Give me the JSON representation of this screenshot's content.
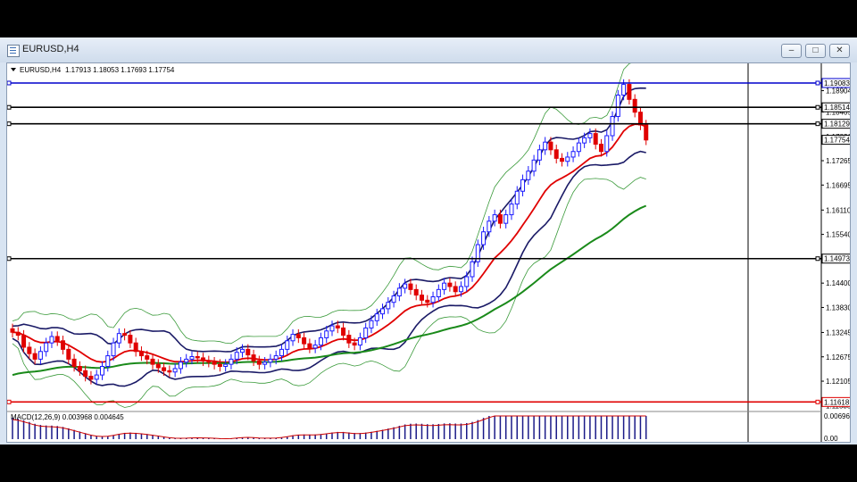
{
  "window": {
    "title": "EURUSD,H4",
    "min_glyph": "–",
    "max_glyph": "□",
    "close_glyph": "✕"
  },
  "chart_header": {
    "symbol": "EURUSD,H4",
    "ohlc": "1.17913 1.18053 1.17693 1.17754"
  },
  "indicator_label": "MACD(12,26,9) 0.003968 0.004645",
  "price_axis": {
    "ticks": [
      "1.18904",
      "1.18405",
      "1.17826",
      "1.17265",
      "1.16695",
      "1.16110",
      "1.15540",
      "1.14400",
      "1.13830",
      "1.13245",
      "1.12675",
      "1.12105",
      "1.11535"
    ],
    "macd_ticks": [
      "0.006968",
      "0.00"
    ]
  },
  "levels": [
    {
      "label": "1.19083",
      "value": 1.19083,
      "color": "#0000cc"
    },
    {
      "label": "1.18514",
      "value": 1.18514,
      "color": "#000000"
    },
    {
      "label": "1.18129",
      "value": 1.18129,
      "color": "#000000"
    },
    {
      "label": "1.14973",
      "value": 1.14973,
      "color": "#000000"
    },
    {
      "label": "1.11618",
      "value": 1.11618,
      "color": "#e00000"
    }
  ],
  "current_price": {
    "label": "1.17754",
    "value": 1.17754
  },
  "colors": {
    "bull_candle": "#1a1aff",
    "bear_candle": "#e00000",
    "bollinger": "#3a9a3a",
    "envelope": "#1a1a66",
    "ma_fast": "#e00000",
    "ma_slow": "#1a8a1a",
    "macd_hist": "#1a1a88",
    "macd_signal": "#cc0000"
  },
  "chart_data": {
    "type": "candlestick",
    "title": "EURUSD,H4",
    "xlabel": "",
    "ylabel": "",
    "ylim": [
      1.115,
      1.1925
    ],
    "grid": false,
    "close_series": [
      1.1325,
      1.1318,
      1.129,
      1.1275,
      1.1262,
      1.128,
      1.13,
      1.1315,
      1.1305,
      1.1285,
      1.1262,
      1.1245,
      1.1235,
      1.1222,
      1.1215,
      1.1225,
      1.1245,
      1.127,
      1.13,
      1.1322,
      1.1318,
      1.13,
      1.128,
      1.127,
      1.1262,
      1.125,
      1.1242,
      1.1235,
      1.1232,
      1.124,
      1.1255,
      1.1262,
      1.1268,
      1.1265,
      1.1258,
      1.1255,
      1.125,
      1.1245,
      1.125,
      1.1262,
      1.1278,
      1.1285,
      1.1272,
      1.1258,
      1.125,
      1.1255,
      1.1262,
      1.127,
      1.1285,
      1.1305,
      1.132,
      1.1312,
      1.1298,
      1.1288,
      1.1295,
      1.1312,
      1.1328,
      1.134,
      1.1335,
      1.1318,
      1.13,
      1.1295,
      1.1312,
      1.1335,
      1.1352,
      1.1368,
      1.138,
      1.1395,
      1.141,
      1.1428,
      1.1438,
      1.1425,
      1.1412,
      1.14,
      1.1395,
      1.1408,
      1.1425,
      1.144,
      1.1432,
      1.142,
      1.1432,
      1.1455,
      1.149,
      1.153,
      1.156,
      1.1585,
      1.16,
      1.158,
      1.16,
      1.1625,
      1.1655,
      1.1682,
      1.1702,
      1.1728,
      1.1752,
      1.177,
      1.1752,
      1.1732,
      1.1725,
      1.1735,
      1.1748,
      1.1768,
      1.178,
      1.179,
      1.1765,
      1.1748,
      1.1785,
      1.183,
      1.188,
      1.1905,
      1.187,
      1.184,
      1.181,
      1.1775
    ],
    "moving_average_slow_start": 1.1225,
    "moving_average_slow_end": 1.163,
    "macd": {
      "label": "MACD(12,26,9)",
      "main": 0.003968,
      "signal": 0.004645
    }
  }
}
